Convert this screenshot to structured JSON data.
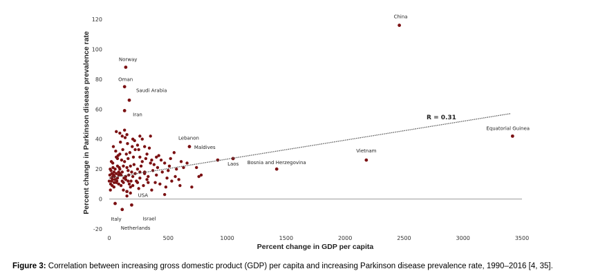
{
  "caption": {
    "label": "Figure 3:",
    "text": " Correlation between increasing gross domestic product (GDP) per capita and increasing Parkinson disease prevalence rate, 1990–2016 [4, 35]."
  },
  "chart_data": {
    "type": "scatter",
    "xlabel": "Percent change in GDP per capita",
    "ylabel": "Percent change in Parkinson disease prevalence rate",
    "xlim": [
      0,
      3500
    ],
    "ylim": [
      -20,
      120
    ],
    "xticks": [
      "0",
      "500",
      "1000",
      "1500",
      "2000",
      "2500",
      "3000",
      "3500"
    ],
    "yticks": [
      "-20",
      "0",
      "20",
      "40",
      "60",
      "80",
      "100",
      "120"
    ],
    "marker_color": "#7b1113",
    "trendline": {
      "label": "R = 0.31",
      "x": [
        0,
        3400
      ],
      "y": [
        14,
        57
      ]
    },
    "labeled_points": [
      {
        "name": "China",
        "x": 2460,
        "y": 116
      },
      {
        "name": "Norway",
        "x": 140,
        "y": 88
      },
      {
        "name": "Oman",
        "x": 130,
        "y": 75
      },
      {
        "name": "Saudi Arabia",
        "x": 170,
        "y": 66
      },
      {
        "name": "Iran",
        "x": 130,
        "y": 59
      },
      {
        "name": "Lebanon",
        "x": 680,
        "y": 35
      },
      {
        "name": "Maldives",
        "x": 920,
        "y": 26
      },
      {
        "name": "Laos",
        "x": 1050,
        "y": 27
      },
      {
        "name": "Bosnia and Herzegovina",
        "x": 1420,
        "y": 20
      },
      {
        "name": "Vietnam",
        "x": 2180,
        "y": 26
      },
      {
        "name": "Equatorial Guinea",
        "x": 3420,
        "y": 42
      },
      {
        "name": "USA",
        "x": 150,
        "y": 5
      },
      {
        "name": "Italy",
        "x": 50,
        "y": -3
      },
      {
        "name": "Israel",
        "x": 190,
        "y": -4
      },
      {
        "name": "Netherlands",
        "x": 110,
        "y": -7
      }
    ],
    "points": [
      [
        20,
        14
      ],
      [
        40,
        18
      ],
      [
        60,
        11
      ],
      [
        80,
        16
      ],
      [
        100,
        9
      ],
      [
        120,
        22
      ],
      [
        140,
        13
      ],
      [
        160,
        19
      ],
      [
        180,
        8
      ],
      [
        200,
        15
      ],
      [
        30,
        24
      ],
      [
        50,
        20
      ],
      [
        70,
        27
      ],
      [
        90,
        17
      ],
      [
        110,
        12
      ],
      [
        130,
        25
      ],
      [
        150,
        21
      ],
      [
        170,
        10
      ],
      [
        190,
        18
      ],
      [
        210,
        23
      ],
      [
        25,
        9
      ],
      [
        45,
        15
      ],
      [
        65,
        12
      ],
      [
        85,
        21
      ],
      [
        105,
        26
      ],
      [
        125,
        14
      ],
      [
        145,
        30
      ],
      [
        165,
        16
      ],
      [
        185,
        12
      ],
      [
        205,
        28
      ],
      [
        35,
        35
      ],
      [
        55,
        32
      ],
      [
        75,
        29
      ],
      [
        95,
        38
      ],
      [
        115,
        33
      ],
      [
        135,
        41
      ],
      [
        155,
        37
      ],
      [
        175,
        31
      ],
      [
        195,
        35
      ],
      [
        215,
        39
      ],
      [
        60,
        45
      ],
      [
        90,
        44
      ],
      [
        110,
        42
      ],
      [
        130,
        46
      ],
      [
        150,
        43
      ],
      [
        240,
        20
      ],
      [
        260,
        14
      ],
      [
        280,
        25
      ],
      [
        300,
        18
      ],
      [
        320,
        30
      ],
      [
        230,
        12
      ],
      [
        250,
        33
      ],
      [
        270,
        22
      ],
      [
        290,
        9
      ],
      [
        310,
        27
      ],
      [
        330,
        15
      ],
      [
        350,
        24
      ],
      [
        370,
        19
      ],
      [
        390,
        11
      ],
      [
        410,
        21
      ],
      [
        240,
        36
      ],
      [
        260,
        28
      ],
      [
        280,
        40
      ],
      [
        300,
        17
      ],
      [
        320,
        13
      ],
      [
        340,
        34
      ],
      [
        360,
        26
      ],
      [
        380,
        23
      ],
      [
        400,
        16
      ],
      [
        420,
        29
      ],
      [
        430,
        10
      ],
      [
        450,
        18
      ],
      [
        470,
        24
      ],
      [
        490,
        14
      ],
      [
        510,
        22
      ],
      [
        530,
        12
      ],
      [
        550,
        31
      ],
      [
        570,
        20
      ],
      [
        590,
        13
      ],
      [
        610,
        25
      ],
      [
        10,
        6
      ],
      [
        15,
        19
      ],
      [
        20,
        12
      ],
      [
        30,
        15
      ],
      [
        40,
        8
      ],
      [
        50,
        13
      ],
      [
        60,
        17
      ],
      [
        70,
        14
      ],
      [
        80,
        10
      ],
      [
        90,
        20
      ],
      [
        100,
        16
      ],
      [
        110,
        18
      ],
      [
        120,
        11
      ],
      [
        140,
        15
      ],
      [
        160,
        12
      ],
      [
        180,
        22
      ],
      [
        200,
        9
      ],
      [
        220,
        17
      ],
      [
        240,
        11
      ],
      [
        260,
        18
      ],
      [
        0,
        12
      ],
      [
        5,
        16
      ],
      [
        8,
        20
      ],
      [
        12,
        10
      ],
      [
        18,
        25
      ],
      [
        22,
        17
      ],
      [
        28,
        13
      ],
      [
        32,
        21
      ],
      [
        38,
        16
      ],
      [
        42,
        11
      ],
      [
        470,
        3
      ],
      [
        480,
        8
      ],
      [
        520,
        27
      ],
      [
        630,
        21
      ],
      [
        700,
        8
      ],
      [
        740,
        21
      ],
      [
        760,
        15
      ],
      [
        780,
        16
      ],
      [
        660,
        24
      ],
      [
        180,
        4
      ],
      [
        200,
        40
      ],
      [
        220,
        33
      ],
      [
        160,
        27
      ],
      [
        300,
        35
      ],
      [
        350,
        42
      ],
      [
        400,
        28
      ],
      [
        250,
        7
      ],
      [
        120,
        6
      ],
      [
        90,
        30
      ],
      [
        60,
        28
      ],
      [
        150,
        2
      ],
      [
        80,
        18
      ],
      [
        70,
        22
      ],
      [
        260,
        42
      ],
      [
        330,
        11
      ],
      [
        560,
        15
      ],
      [
        600,
        9
      ],
      [
        500,
        19
      ],
      [
        440,
        26
      ],
      [
        360,
        6
      ]
    ]
  }
}
